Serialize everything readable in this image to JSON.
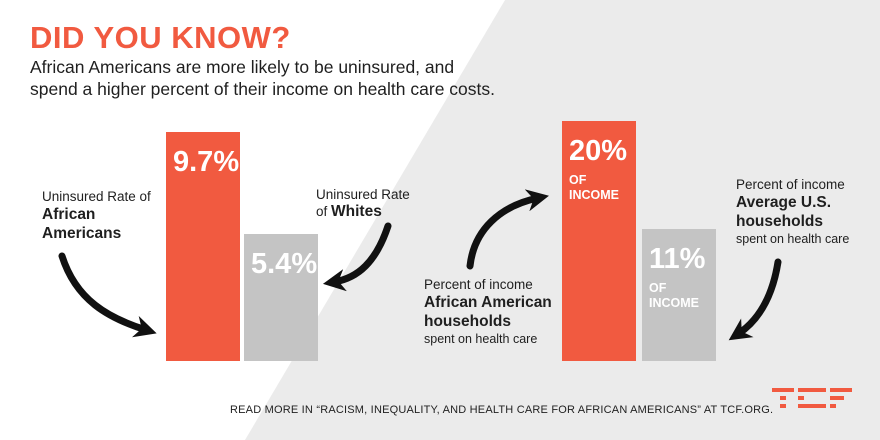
{
  "header": {
    "title": "DID YOU KNOW?",
    "subtitle_line1": "African Americans are more likely to be uninsured, and",
    "subtitle_line2": "spend a higher percent of their income on health care costs."
  },
  "footer": {
    "text": "READ MORE IN “RACISM, INEQUALITY, AND HEALTH CARE FOR AFRICAN AMERICANS” AT TCF.ORG."
  },
  "colors": {
    "accent": "#f15a40",
    "gray_bar": "#c4c4c4",
    "text": "#1f1f1f",
    "bg_panel": "#ebebeb"
  },
  "chart_data": [
    {
      "type": "bar",
      "title": "Uninsured Rate",
      "ylim": [
        0,
        10
      ],
      "categories": [
        "African Americans",
        "Whites"
      ],
      "values": [
        9.7,
        5.4
      ],
      "unit": "%",
      "data_labels": [
        "9.7%",
        "5.4%"
      ],
      "annotations": {
        "aa_prefix": "Uninsured Rate of",
        "aa_line1": "African",
        "aa_line2": "Americans",
        "w_line1": "Uninsured Rate",
        "w_prefix": "of",
        "w_bold": "Whites"
      }
    },
    {
      "type": "bar",
      "title": "Percent of income spent on health care",
      "ylim": [
        0,
        20
      ],
      "categories": [
        "African American households",
        "Average U.S. households"
      ],
      "values": [
        20,
        11
      ],
      "unit": "% of income",
      "data_labels": [
        "20%",
        "11%"
      ],
      "value_suffix_line1": "OF",
      "value_suffix_line2": "INCOME",
      "annotations": {
        "aa_prefix": "Percent of  income",
        "aa_line1": "African American",
        "aa_line2": "households",
        "aa_suffix": "spent on health care",
        "us_prefix": "Percent of  income",
        "us_line1": "Average U.S.",
        "us_line2": "households",
        "us_suffix": "spent on health care"
      }
    }
  ]
}
